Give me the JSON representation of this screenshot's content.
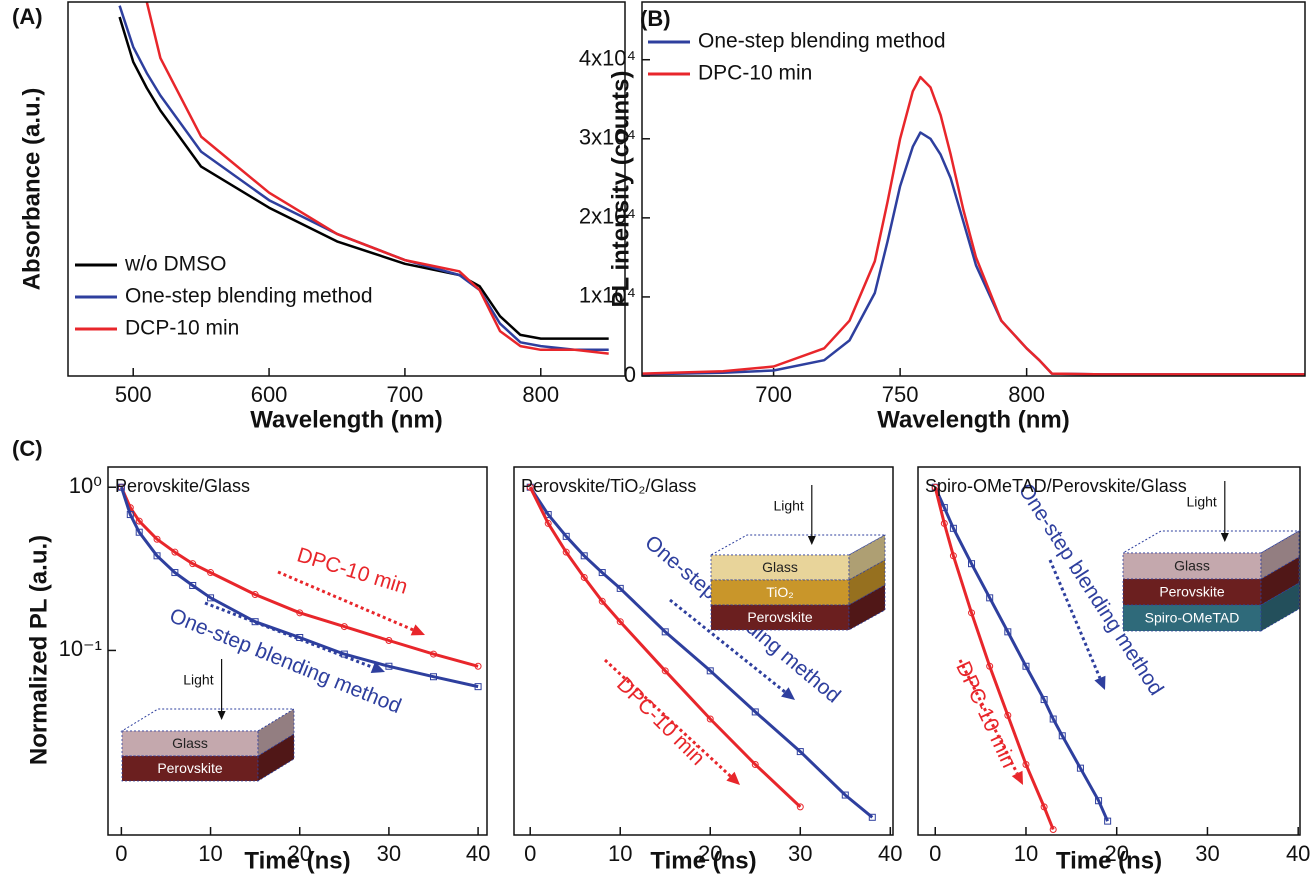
{
  "chart_data": [
    {
      "type": "line",
      "panel_label": "(A)",
      "x_label": "Wavelength (nm)",
      "y_label": "Absorbance (a.u.)",
      "x": [
        490,
        500,
        510,
        520,
        550,
        600,
        650,
        700,
        740,
        755,
        770,
        785,
        800,
        825,
        850
      ],
      "xlim": [
        452,
        862
      ],
      "xticks": [
        500,
        600,
        700,
        800
      ],
      "ylim": [
        0,
        1
      ],
      "legend": "lower left",
      "series": [
        {
          "name": "w/o DMSO",
          "color": "#000000",
          "values": [
            0.96,
            0.84,
            0.77,
            0.71,
            0.56,
            0.45,
            0.36,
            0.3,
            0.27,
            0.24,
            0.16,
            0.11,
            0.1,
            0.1,
            0.1
          ]
        },
        {
          "name": "One-step blending method",
          "color": "#2e3f9e",
          "values": [
            0.99,
            0.88,
            0.81,
            0.75,
            0.6,
            0.47,
            0.38,
            0.31,
            0.27,
            0.23,
            0.14,
            0.09,
            0.08,
            0.07,
            0.07
          ]
        },
        {
          "name": "DCP-10 min",
          "color": "#e8262b",
          "values": [
            null,
            null,
            1.0,
            0.85,
            0.64,
            0.49,
            0.38,
            0.31,
            0.28,
            0.23,
            0.12,
            0.08,
            0.07,
            0.07,
            0.06
          ]
        }
      ]
    },
    {
      "type": "line",
      "panel_label": "(B)",
      "x_label": "Wavelength (nm)",
      "y_label": "PL intensity (counts)",
      "x": [
        648,
        680,
        700,
        720,
        730,
        740,
        745,
        750,
        755,
        758,
        762,
        766,
        770,
        775,
        780,
        790,
        800,
        805,
        810,
        830,
        910
      ],
      "xlim": [
        648,
        910
      ],
      "xticks": [
        700,
        750,
        800
      ],
      "ylim": [
        0,
        47300
      ],
      "yticks": [
        0,
        {
          "value": 10000,
          "label": "1x10⁴"
        },
        {
          "value": 20000,
          "label": "2x10⁴"
        },
        {
          "value": 30000,
          "label": "3x10⁴"
        },
        {
          "value": 40000,
          "label": "4x10⁴"
        }
      ],
      "legend": "upper left",
      "series": [
        {
          "name": "One-step blending method",
          "color": "#2e3f9e",
          "values": [
            200,
            400,
            700,
            2000,
            4500,
            10500,
            17000,
            24000,
            29000,
            30800,
            30000,
            28000,
            25000,
            19500,
            14000,
            7000,
            3500,
            2000,
            300,
            200,
            200
          ]
        },
        {
          "name": "DPC-10 min",
          "color": "#e8262b",
          "values": [
            300,
            600,
            1200,
            3500,
            7000,
            14500,
            22000,
            30000,
            36000,
            37800,
            36500,
            33000,
            28000,
            21000,
            15000,
            7000,
            3500,
            2000,
            300,
            200,
            200
          ]
        }
      ]
    },
    {
      "type": "line",
      "panel_label": "(C)",
      "title": "Perovskite/Glass",
      "x_label": "Time (ns)",
      "y_label": "Normalized PL (a.u.)",
      "y_scale": "log",
      "x": [
        0,
        1,
        2,
        4,
        6,
        8,
        10,
        15,
        20,
        25,
        30,
        35,
        40
      ],
      "xlim": [
        -1.5,
        41
      ],
      "xticks": [
        0,
        10,
        20,
        30,
        40
      ],
      "ylim": [
        0.0074,
        1.33
      ],
      "yticks": [
        {
          "value": 1,
          "label": "10⁰"
        },
        {
          "value": 0.1,
          "label": "10⁻¹"
        }
      ],
      "series": [
        {
          "name": "DPC-10 min",
          "color": "#e8262b",
          "marker": "circle",
          "values": [
            1,
            0.75,
            0.62,
            0.48,
            0.4,
            0.34,
            0.3,
            0.22,
            0.17,
            0.14,
            0.115,
            0.095,
            0.08
          ]
        },
        {
          "name": "One-step blending method",
          "color": "#2e3f9e",
          "marker": "square",
          "values": [
            1,
            0.68,
            0.53,
            0.38,
            0.3,
            0.25,
            0.21,
            0.15,
            0.12,
            0.095,
            0.08,
            0.069,
            0.06
          ]
        }
      ],
      "inset": {
        "light": "Light",
        "layers": [
          {
            "label": "Glass",
            "color": "#c4a8ad"
          },
          {
            "label": "Perovskite",
            "color": "#6b1f1f"
          }
        ]
      }
    },
    {
      "type": "line",
      "title": "Perovskite/TiO₂/Glass",
      "x_label": "Time (ns)",
      "y_scale": "log",
      "x": [
        0,
        2,
        4,
        6,
        8,
        10,
        15,
        20,
        25,
        30,
        35,
        38
      ],
      "xlim": [
        -1.8,
        40.3
      ],
      "xticks": [
        0,
        10,
        20,
        30,
        40
      ],
      "ylim": [
        0.0074,
        1.33
      ],
      "series": [
        {
          "name": "One-step blending method",
          "color": "#2e3f9e",
          "marker": "square",
          "values": [
            1,
            0.68,
            0.5,
            0.38,
            0.3,
            0.24,
            0.13,
            0.075,
            0.042,
            0.024,
            0.013,
            0.0095
          ]
        },
        {
          "name": "DPC-10 min",
          "color": "#e8262b",
          "marker": "circle",
          "values": [
            1,
            0.6,
            0.4,
            0.28,
            0.2,
            0.15,
            0.075,
            0.038,
            0.02,
            0.011,
            null,
            null
          ]
        }
      ],
      "inset": {
        "light": "Light",
        "layers": [
          {
            "label": "Glass",
            "color": "#e8d49a"
          },
          {
            "label": "TiO₂",
            "color": "#c9962a"
          },
          {
            "label": "Perovskite",
            "color": "#6b1f1f"
          }
        ]
      }
    },
    {
      "type": "line",
      "title": "Spiro-OMeTAD/Perovskite/Glass",
      "x_label": "Time (ns)",
      "y_scale": "log",
      "x": [
        0,
        1,
        2,
        4,
        6,
        8,
        10,
        12,
        13,
        14,
        16,
        18,
        19
      ],
      "xlim": [
        -1.9,
        40.2
      ],
      "xticks": [
        0,
        10,
        20,
        30,
        40
      ],
      "ylim": [
        0.0074,
        1.33
      ],
      "series": [
        {
          "name": "One-step blending method",
          "color": "#2e3f9e",
          "marker": "square",
          "values": [
            1,
            0.75,
            0.56,
            0.34,
            0.21,
            0.13,
            0.08,
            0.05,
            0.038,
            0.03,
            0.019,
            0.012,
            0.009
          ]
        },
        {
          "name": "DPC-10 min",
          "color": "#e8262b",
          "marker": "circle",
          "values": [
            1,
            0.6,
            0.38,
            0.17,
            0.08,
            0.04,
            0.02,
            0.011,
            0.008,
            null,
            null,
            null,
            null
          ]
        }
      ],
      "inset": {
        "light": "Light",
        "layers": [
          {
            "label": "Glass",
            "color": "#c4a8ad"
          },
          {
            "label": "Perovskite",
            "color": "#6b1f1f"
          },
          {
            "label": "Spiro-OMeTAD",
            "color": "#2f6a7a"
          }
        ]
      }
    }
  ]
}
